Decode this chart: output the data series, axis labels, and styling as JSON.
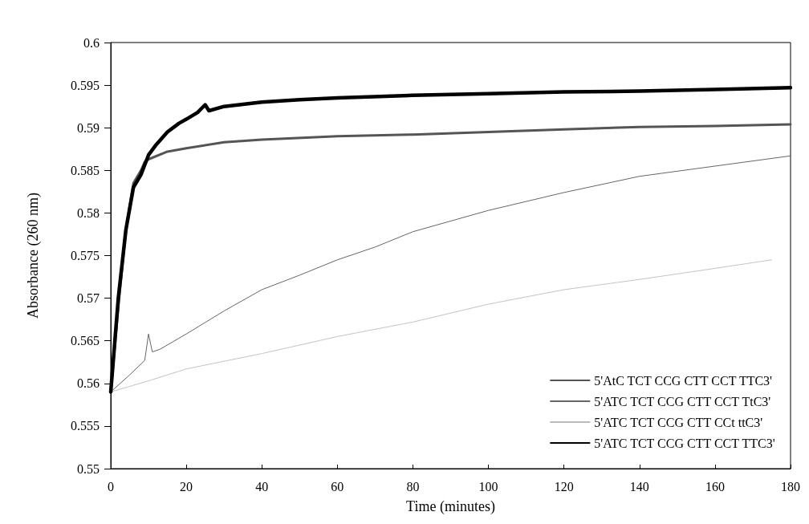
{
  "chart_data": {
    "type": "line",
    "xlabel": "Time (minutes)",
    "ylabel": "Absorbance (260 nm)",
    "xlim": [
      0,
      180
    ],
    "xticks": [
      0,
      20,
      40,
      60,
      80,
      100,
      120,
      140,
      160,
      180
    ],
    "ylim": [
      0.55,
      0.6
    ],
    "yticks": [
      0.55,
      0.555,
      0.56,
      0.565,
      0.57,
      0.575,
      0.58,
      0.585,
      0.59,
      0.595,
      0.6
    ],
    "grid": false,
    "legend": "bottom right",
    "marker": "none",
    "series": [
      {
        "name": "5'AtC TCT CCG CTT CCT TTC3'",
        "color": "#555555",
        "line_style": "solid",
        "x": [
          0,
          2,
          4,
          6,
          8,
          9,
          10,
          15,
          20,
          30,
          40,
          60,
          80,
          100,
          120,
          140,
          160,
          180
        ],
        "values": [
          0.559,
          0.569,
          0.578,
          0.5835,
          0.585,
          0.586,
          0.5863,
          0.5872,
          0.5876,
          0.5883,
          0.5886,
          0.589,
          0.5892,
          0.5895,
          0.5898,
          0.5901,
          0.5902,
          0.5904
        ]
      },
      {
        "name": "5'ATC TCT CCG CTT CCT TtC3'",
        "color": "#666666",
        "line_style": "solid",
        "x": [
          0,
          5,
          9,
          10,
          11,
          13,
          20,
          30,
          40,
          50,
          60,
          70,
          80,
          100,
          120,
          140,
          160,
          180
        ],
        "values": [
          0.559,
          0.561,
          0.5627,
          0.5658,
          0.5637,
          0.564,
          0.5658,
          0.5685,
          0.571,
          0.5727,
          0.5745,
          0.576,
          0.5778,
          0.5803,
          0.5824,
          0.5843,
          0.5855,
          0.5867
        ]
      },
      {
        "name": "5'ATC TCT CCG CTT CCt ttC3'",
        "color": "#bbbbbb",
        "line_style": "dotted",
        "x": [
          0,
          10,
          20,
          40,
          60,
          80,
          100,
          120,
          140,
          160,
          175
        ],
        "values": [
          0.559,
          0.5603,
          0.5617,
          0.5635,
          0.5655,
          0.5672,
          0.5693,
          0.571,
          0.5722,
          0.5735,
          0.5745
        ]
      },
      {
        "name": "5'ATC TCT CCG CTT CCT TTC3'",
        "color": "#000000",
        "line_style": "solid",
        "x": [
          0,
          2,
          4,
          6,
          8,
          10,
          12,
          15,
          18,
          20,
          23,
          25,
          26,
          30,
          40,
          50,
          60,
          80,
          100,
          120,
          140,
          160,
          180
        ],
        "values": [
          0.559,
          0.57,
          0.578,
          0.583,
          0.5845,
          0.5868,
          0.588,
          0.5895,
          0.5905,
          0.591,
          0.5918,
          0.5927,
          0.592,
          0.5925,
          0.593,
          0.5933,
          0.5935,
          0.5938,
          0.594,
          0.5942,
          0.5943,
          0.5945,
          0.5947
        ]
      }
    ]
  }
}
